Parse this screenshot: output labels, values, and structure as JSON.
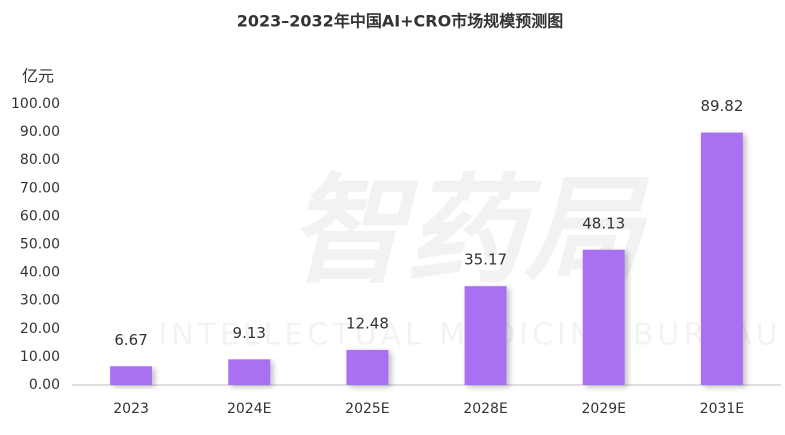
{
  "chart_data": {
    "type": "bar",
    "title": "2023–2032年中国AI+CRO市场规模预测图",
    "y_label": "亿元",
    "watermark": "智药局",
    "watermark_subtitle": "INTELLECTUAL MEDICINE BUREAU",
    "categories": [
      "2023",
      "2024E",
      "2025E",
      "2028E",
      "2029E",
      "2031E"
    ],
    "values": [
      6.67,
      9.13,
      12.48,
      35.17,
      48.13,
      89.82
    ],
    "color": "#a970f2",
    "ylim": [
      0,
      100
    ],
    "yticks": [
      {
        "value": 0,
        "label": "0.00"
      },
      {
        "value": 10,
        "label": "10.00"
      },
      {
        "value": 20,
        "label": "20.00"
      },
      {
        "value": 30,
        "label": "30.00"
      },
      {
        "value": 40,
        "label": "40.00"
      },
      {
        "value": 50,
        "label": "50.00"
      },
      {
        "value": 60,
        "label": "60.00"
      },
      {
        "value": 70,
        "label": "70.00"
      },
      {
        "value": 80,
        "label": "80.00"
      },
      {
        "value": 90,
        "label": "90.00"
      },
      {
        "value": 100,
        "label": "100.00"
      }
    ],
    "grid": false
  }
}
